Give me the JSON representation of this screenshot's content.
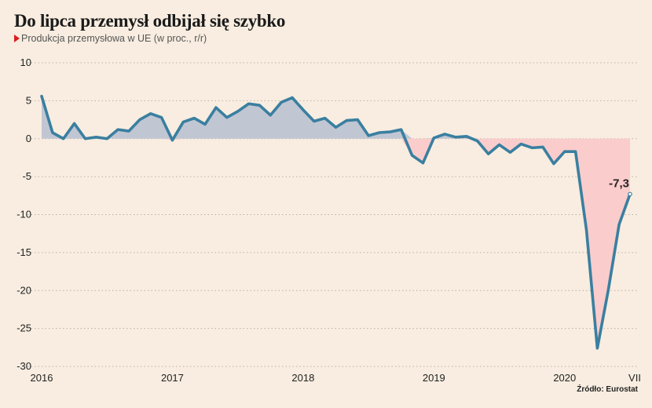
{
  "title": "Do lipca przemysł odbijał się szybko",
  "subtitle": "Produkcja przemysłowa w UE (w proc., r/r)",
  "source": "Źródło: Eurostat",
  "colors": {
    "line": "#3a7fa0",
    "positive_fill": "#c1c6d3",
    "negative_fill": "#fbcccc",
    "marker": "#d82020"
  },
  "chart_data": {
    "type": "area",
    "title": "Do lipca przemysł odbijał się szybko",
    "subtitle": "Produkcja przemysłowa w UE (w proc., r/r)",
    "ylim": [
      -30,
      10
    ],
    "yticks": [
      10,
      5,
      0,
      -5,
      -10,
      -15,
      -20,
      -25,
      -30
    ],
    "x_tick_labels": [
      "2016",
      "2017",
      "2018",
      "2019",
      "2020",
      "VII"
    ],
    "x_tick_months": [
      "2016-01",
      "2017-01",
      "2018-01",
      "2019-01",
      "2020-01",
      "2020-07"
    ],
    "x": [
      "2016-01",
      "2016-02",
      "2016-03",
      "2016-04",
      "2016-05",
      "2016-06",
      "2016-07",
      "2016-08",
      "2016-09",
      "2016-10",
      "2016-11",
      "2016-12",
      "2017-01",
      "2017-02",
      "2017-03",
      "2017-04",
      "2017-05",
      "2017-06",
      "2017-07",
      "2017-08",
      "2017-09",
      "2017-10",
      "2017-11",
      "2017-12",
      "2018-01",
      "2018-02",
      "2018-03",
      "2018-04",
      "2018-05",
      "2018-06",
      "2018-07",
      "2018-08",
      "2018-09",
      "2018-10",
      "2018-11",
      "2018-12",
      "2019-01",
      "2019-02",
      "2019-03",
      "2019-04",
      "2019-05",
      "2019-06",
      "2019-07",
      "2019-08",
      "2019-09",
      "2019-10",
      "2019-11",
      "2019-12",
      "2020-01",
      "2020-02",
      "2020-03",
      "2020-04",
      "2020-05",
      "2020-06",
      "2020-07"
    ],
    "series": [
      {
        "values": [
          5.6,
          0.8,
          0.0,
          2.0,
          0.0,
          0.2,
          0.0,
          1.2,
          1.0,
          2.5,
          3.3,
          2.8,
          -0.2,
          2.2,
          2.7,
          1.9,
          4.1,
          2.8,
          3.6,
          4.6,
          4.4,
          3.1,
          4.8,
          5.4,
          3.8,
          2.3,
          2.7,
          1.5,
          2.4,
          2.5,
          0.4,
          0.8,
          0.9,
          1.2,
          -2.2,
          -3.2,
          0.1,
          0.6,
          0.2,
          0.3,
          -0.3,
          -2.0,
          -0.8,
          -1.8,
          -0.7,
          -1.2,
          -1.1,
          -3.3,
          -1.7,
          -1.7,
          -12.0,
          -27.6,
          -20.0,
          -11.3,
          -7.3
        ]
      }
    ],
    "annotations": [
      {
        "x": "2020-07",
        "y": -7.3,
        "text": "-7,3"
      }
    ],
    "grid": true
  }
}
